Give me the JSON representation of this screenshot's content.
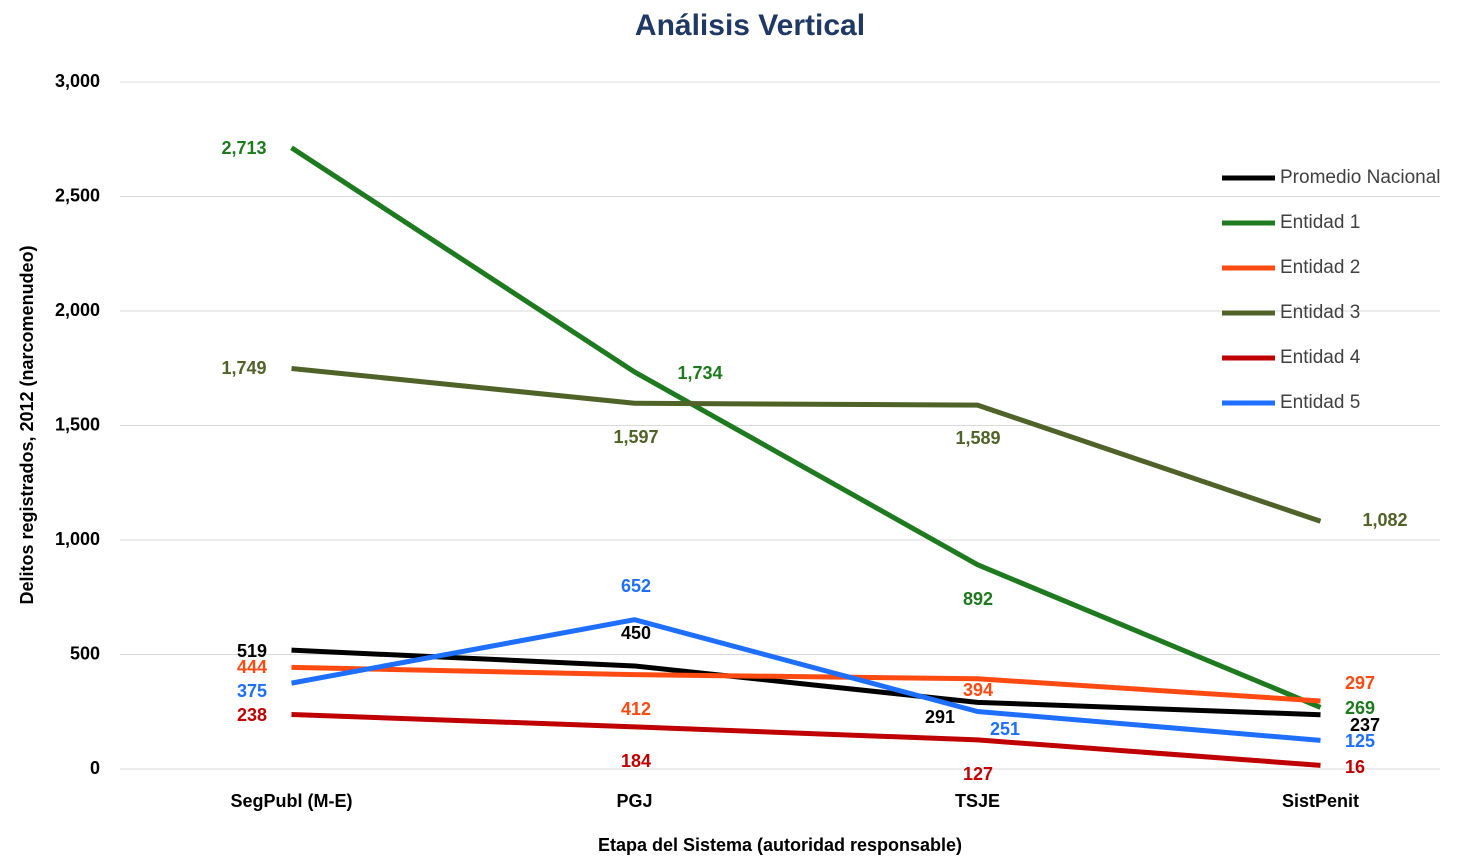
{
  "chart_data": {
    "type": "line",
    "title": "Análisis Vertical",
    "x_label": "Etapa del Sistema (autoridad responsable)",
    "y_label": "Delitos registrados, 2012 (narcomenudeo)",
    "categories": [
      "SegPubl (M-E)",
      "PGJ",
      "TSJE",
      "SistPenit"
    ],
    "series": [
      {
        "name": "Promedio Nacional",
        "color": "#000000",
        "values": [
          519,
          450,
          291,
          237
        ]
      },
      {
        "name": "Entidad 1",
        "color": "#1e7a1e",
        "values": [
          2713,
          1734,
          892,
          269
        ],
        "value_labels": [
          "2,713",
          "1,734",
          "892",
          "269"
        ]
      },
      {
        "name": "Entidad 2",
        "color": "#ff4a12",
        "values": [
          444,
          412,
          394,
          297
        ]
      },
      {
        "name": "Entidad 3",
        "color": "#4f6228",
        "values": [
          1749,
          1597,
          1589,
          1082
        ],
        "value_labels": [
          "1,749",
          "1,597",
          "1,589",
          "1,082"
        ]
      },
      {
        "name": "Entidad 4",
        "color": "#c00000",
        "values": [
          238,
          184,
          127,
          16
        ]
      },
      {
        "name": "Entidad 5",
        "color": "#1f6fff",
        "values": [
          375,
          652,
          251,
          125
        ]
      }
    ],
    "ylim": [
      0,
      3000
    ],
    "yticks": [
      0,
      500,
      {
        "value": 1000,
        "label": "1,000"
      },
      {
        "value": 1500,
        "label": "1,500"
      },
      {
        "value": 2000,
        "label": "2,000"
      },
      {
        "value": 2500,
        "label": "2,500"
      },
      {
        "value": 3000,
        "label": "3,000"
      }
    ],
    "grid": true,
    "legend": "right"
  }
}
